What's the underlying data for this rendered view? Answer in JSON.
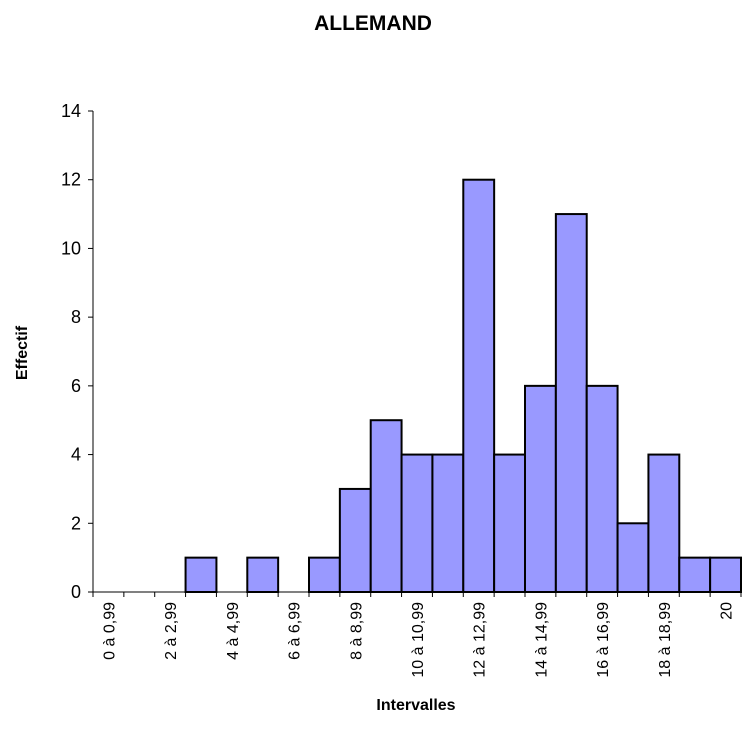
{
  "chart_data": {
    "type": "bar",
    "title": "ALLEMAND",
    "xlabel": "Intervalles",
    "ylabel": "Effectif",
    "ylim": [
      0,
      14
    ],
    "yticks": [
      0,
      2,
      4,
      6,
      8,
      10,
      12,
      14
    ],
    "bar_color": "#9999ff",
    "bar_outline": "#000000",
    "grid": false,
    "legend": "none",
    "values": [
      0,
      0,
      0,
      1,
      0,
      1,
      0,
      1,
      3,
      5,
      4,
      4,
      12,
      4,
      6,
      11,
      6,
      2,
      4,
      1,
      1
    ],
    "x_tick_labels": [
      "0 à 0,99",
      "2 à 2,99",
      "4 à 4,99",
      "6 à 6,99",
      "8 à 8,99",
      "10 à 10,99",
      "12 à 12,99",
      "14 à 14,99",
      "16 à 16,99",
      "18 à 18,99",
      "20"
    ]
  }
}
